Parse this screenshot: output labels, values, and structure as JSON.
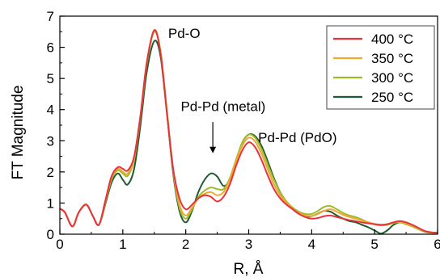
{
  "chart_data": {
    "type": "line",
    "xlabel": "R, Å",
    "ylabel": "FT Magnitude",
    "xlim": [
      0,
      6
    ],
    "ylim": [
      0,
      7
    ],
    "x_ticks": [
      "0",
      "1",
      "2",
      "3",
      "4",
      "5",
      "6"
    ],
    "y_ticks": [
      "0",
      "1",
      "2",
      "3",
      "4",
      "5",
      "6",
      "7"
    ],
    "grid": false,
    "legend_position": "top-right",
    "annotations": [
      {
        "text": "Pd-O",
        "x": 1.72,
        "y": 6.3
      },
      {
        "text": "Pd-Pd (metal)",
        "x": 1.92,
        "y": 3.95
      },
      {
        "text": "Pd-Pd (PdO)",
        "x": 3.15,
        "y": 2.95
      }
    ],
    "arrow": {
      "x": 2.43,
      "y_start": 3.6,
      "y_end": 2.6
    },
    "series": [
      {
        "name": "400 °C",
        "color": "#e8323c",
        "x": [
          0,
          0.08,
          0.2,
          0.3,
          0.42,
          0.52,
          0.62,
          0.72,
          0.82,
          0.92,
          1.0,
          1.08,
          1.18,
          1.28,
          1.38,
          1.5,
          1.6,
          1.7,
          1.8,
          1.9,
          2.0,
          2.1,
          2.2,
          2.3,
          2.4,
          2.5,
          2.6,
          2.7,
          2.8,
          2.9,
          3.0,
          3.1,
          3.2,
          3.3,
          3.4,
          3.5,
          3.6,
          3.7,
          3.8,
          3.9,
          4.0,
          4.1,
          4.2,
          4.3,
          4.4,
          4.5,
          4.6,
          4.7,
          4.8,
          4.9,
          5.0,
          5.1,
          5.2,
          5.3,
          5.4,
          5.5,
          5.6,
          5.7,
          5.8,
          5.9,
          6.0
        ],
        "y": [
          0.82,
          0.7,
          0.25,
          0.7,
          0.95,
          0.6,
          0.3,
          1.05,
          1.85,
          2.15,
          2.1,
          2.05,
          2.5,
          3.8,
          5.5,
          6.55,
          5.8,
          3.9,
          2.1,
          1.15,
          0.8,
          0.95,
          1.15,
          1.25,
          1.2,
          1.05,
          1.2,
          1.6,
          2.2,
          2.7,
          2.95,
          2.8,
          2.4,
          1.9,
          1.45,
          1.15,
          0.95,
          0.8,
          0.65,
          0.55,
          0.5,
          0.52,
          0.58,
          0.6,
          0.55,
          0.5,
          0.45,
          0.42,
          0.38,
          0.35,
          0.32,
          0.3,
          0.32,
          0.38,
          0.42,
          0.38,
          0.3,
          0.2,
          0.1,
          0.06,
          0.05
        ]
      },
      {
        "name": "350 °C",
        "color": "#f0a830",
        "x": [
          0,
          0.08,
          0.2,
          0.3,
          0.42,
          0.52,
          0.62,
          0.72,
          0.82,
          0.92,
          1.0,
          1.08,
          1.18,
          1.28,
          1.38,
          1.5,
          1.6,
          1.7,
          1.8,
          1.9,
          2.0,
          2.1,
          2.2,
          2.3,
          2.4,
          2.5,
          2.6,
          2.7,
          2.8,
          2.9,
          3.0,
          3.1,
          3.2,
          3.3,
          3.4,
          3.5,
          3.6,
          3.7,
          3.8,
          3.9,
          4.0,
          4.1,
          4.2,
          4.3,
          4.4,
          4.5,
          4.6,
          4.7,
          4.8,
          4.9,
          5.0,
          5.1,
          5.2,
          5.3,
          5.4,
          5.5,
          5.6,
          5.7,
          5.8,
          5.9,
          6.0
        ],
        "y": [
          0.82,
          0.7,
          0.25,
          0.7,
          0.95,
          0.6,
          0.3,
          1.05,
          1.82,
          2.1,
          2.0,
          1.95,
          2.45,
          3.8,
          5.5,
          6.55,
          5.85,
          3.95,
          2.05,
          0.95,
          0.6,
          0.85,
          1.15,
          1.3,
          1.35,
          1.25,
          1.35,
          1.75,
          2.35,
          2.85,
          3.1,
          2.98,
          2.6,
          2.1,
          1.6,
          1.25,
          1.0,
          0.82,
          0.68,
          0.6,
          0.58,
          0.65,
          0.75,
          0.8,
          0.72,
          0.62,
          0.55,
          0.5,
          0.44,
          0.38,
          0.33,
          0.3,
          0.32,
          0.38,
          0.4,
          0.35,
          0.27,
          0.18,
          0.1,
          0.06,
          0.05
        ]
      },
      {
        "name": "300 °C",
        "color": "#9ebc2a",
        "x": [
          0,
          0.08,
          0.2,
          0.3,
          0.42,
          0.52,
          0.62,
          0.72,
          0.82,
          0.92,
          1.0,
          1.08,
          1.18,
          1.28,
          1.38,
          1.5,
          1.6,
          1.7,
          1.8,
          1.9,
          2.0,
          2.1,
          2.2,
          2.3,
          2.4,
          2.5,
          2.6,
          2.7,
          2.8,
          2.9,
          3.0,
          3.1,
          3.2,
          3.3,
          3.4,
          3.5,
          3.6,
          3.7,
          3.8,
          3.9,
          4.0,
          4.1,
          4.2,
          4.3,
          4.4,
          4.5,
          4.6,
          4.7,
          4.8,
          4.9,
          5.0,
          5.1,
          5.2,
          5.3,
          5.4,
          5.5,
          5.6,
          5.7,
          5.8,
          5.9,
          6.0
        ],
        "y": [
          0.82,
          0.7,
          0.25,
          0.7,
          0.95,
          0.6,
          0.3,
          1.0,
          1.75,
          2.05,
          1.95,
          1.88,
          2.4,
          3.75,
          5.45,
          6.5,
          5.85,
          4.0,
          2.05,
          0.85,
          0.5,
          0.8,
          1.2,
          1.4,
          1.5,
          1.45,
          1.45,
          1.8,
          2.4,
          2.95,
          3.2,
          3.1,
          2.75,
          2.25,
          1.75,
          1.35,
          1.05,
          0.85,
          0.72,
          0.65,
          0.65,
          0.75,
          0.88,
          0.9,
          0.8,
          0.68,
          0.6,
          0.55,
          0.47,
          0.38,
          0.32,
          0.28,
          0.3,
          0.36,
          0.38,
          0.32,
          0.25,
          0.16,
          0.08,
          0.05,
          0.05
        ]
      },
      {
        "name": "250 °C",
        "color": "#1e5a32",
        "x": [
          0,
          0.08,
          0.2,
          0.3,
          0.42,
          0.52,
          0.62,
          0.72,
          0.82,
          0.92,
          1.0,
          1.08,
          1.18,
          1.28,
          1.38,
          1.5,
          1.6,
          1.7,
          1.8,
          1.9,
          2.0,
          2.1,
          2.2,
          2.3,
          2.4,
          2.5,
          2.6,
          2.7,
          2.8,
          2.9,
          3.0,
          3.1,
          3.2,
          3.3,
          3.4,
          3.5,
          3.6,
          3.7,
          3.8,
          3.9,
          4.0,
          4.1,
          4.2,
          4.3,
          4.4,
          4.5,
          4.6,
          4.7,
          4.8,
          4.9,
          5.0,
          5.1,
          5.2,
          5.3,
          5.4,
          5.5,
          5.6,
          5.7,
          5.8,
          5.9,
          6.0
        ],
        "y": [
          0.82,
          0.7,
          0.25,
          0.7,
          0.95,
          0.6,
          0.3,
          0.95,
          1.65,
          1.95,
          1.75,
          1.6,
          2.1,
          3.5,
          5.2,
          6.2,
          5.7,
          3.9,
          1.95,
          0.75,
          0.38,
          0.75,
          1.35,
          1.75,
          1.95,
          1.85,
          1.55,
          1.75,
          2.35,
          2.95,
          3.2,
          3.15,
          2.85,
          2.35,
          1.8,
          1.35,
          1.0,
          0.8,
          0.65,
          0.57,
          0.58,
          0.66,
          0.75,
          0.72,
          0.6,
          0.5,
          0.42,
          0.38,
          0.3,
          0.22,
          0.12,
          0.02,
          0.12,
          0.3,
          0.38,
          0.33,
          0.25,
          0.16,
          0.08,
          0.05,
          0.05
        ]
      }
    ]
  }
}
